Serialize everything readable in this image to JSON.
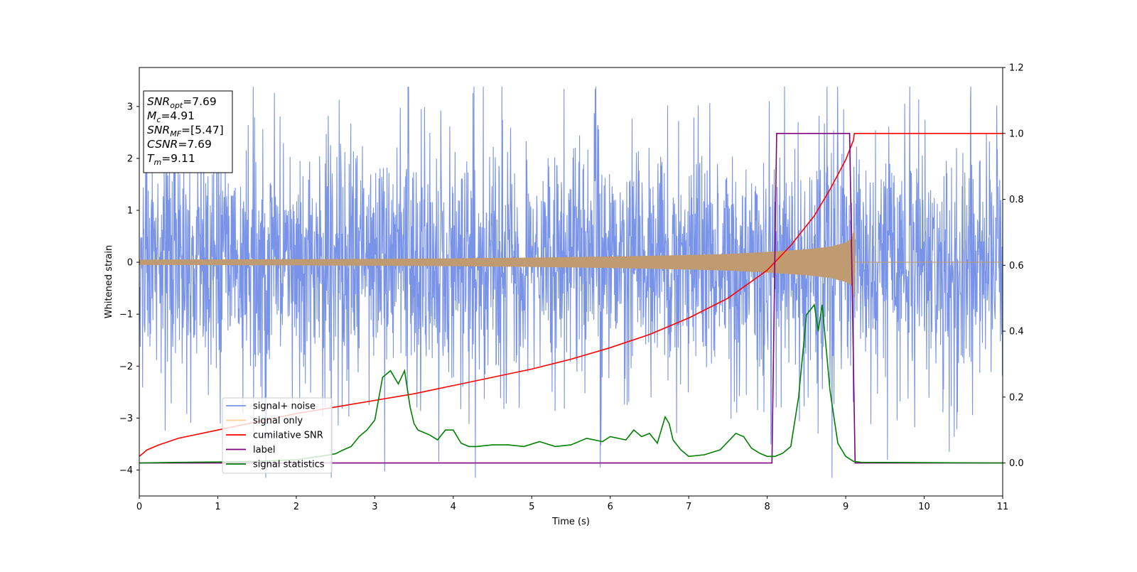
{
  "chart_data": {
    "type": "line",
    "xlabel": "Time (s)",
    "ylabel": "Whitened strain",
    "xlim": [
      0,
      11
    ],
    "ylim_left": [
      -4.5,
      3.75
    ],
    "ylim_right": [
      -0.1,
      1.2
    ],
    "grid": false,
    "legend_position": "lower-left",
    "x_ticks": [
      "0",
      "1",
      "2",
      "3",
      "4",
      "5",
      "6",
      "7",
      "8",
      "9",
      "10",
      "11"
    ],
    "y_ticks_left": [
      "3",
      "2",
      "1",
      "0",
      "−1",
      "−2",
      "−3",
      "−4"
    ],
    "y_ticks_left_values": [
      3,
      2,
      1,
      0,
      -1,
      -2,
      -3,
      -4
    ],
    "y_ticks_right": [
      "1.2",
      "1.0",
      "0.8",
      "0.6",
      "0.4",
      "0.2",
      "0.0"
    ],
    "y_ticks_right_values": [
      1.2,
      1.0,
      0.8,
      0.6,
      0.4,
      0.2,
      0.0
    ],
    "info_box": {
      "lines": [
        {
          "main": "SNR",
          "sub": "opt",
          "value": "=7.69"
        },
        {
          "main": "M",
          "sub": "c",
          "value": "=4.91"
        },
        {
          "main": "SNR",
          "sub": "MF",
          "value": "=[5.47]"
        },
        {
          "main": "CSNR",
          "sub": "",
          "value": "=7.69"
        },
        {
          "main": "T",
          "sub": "m",
          "value": "=9.11"
        }
      ]
    },
    "series": [
      {
        "name": "signal+ noise",
        "axis": "left",
        "color": "#7893e8",
        "kind": "noise_band",
        "noise_envelope": [
          [
            0,
            1.3
          ],
          [
            11,
            1.3
          ]
        ],
        "noise_min": -4.15,
        "noise_max": 3.38
      },
      {
        "name": "signal only",
        "axis": "left",
        "color": "#c09a70",
        "legend_color": "#ffcf8f",
        "kind": "chirp_envelope",
        "envelope": [
          [
            0,
            0.05
          ],
          [
            1,
            0.055
          ],
          [
            2,
            0.06
          ],
          [
            3,
            0.065
          ],
          [
            4,
            0.075
          ],
          [
            5,
            0.09
          ],
          [
            6,
            0.11
          ],
          [
            7,
            0.14
          ],
          [
            7.5,
            0.16
          ],
          [
            8,
            0.2
          ],
          [
            8.5,
            0.25
          ],
          [
            8.8,
            0.3
          ],
          [
            9.0,
            0.38
          ],
          [
            9.08,
            0.46
          ],
          [
            9.11,
            0.7
          ],
          [
            9.12,
            0.0
          ],
          [
            11,
            0.0
          ]
        ]
      },
      {
        "name": "cumilative SNR",
        "axis": "right",
        "color": "#ff0000",
        "x": [
          0,
          0.1,
          0.25,
          0.5,
          1,
          1.5,
          2,
          2.5,
          3,
          3.5,
          4,
          4.5,
          5,
          5.5,
          6,
          6.5,
          7,
          7.5,
          8,
          8.3,
          8.6,
          8.8,
          9.0,
          9.1,
          9.11,
          11
        ],
        "y": [
          0.02,
          0.04,
          0.055,
          0.075,
          0.1,
          0.125,
          0.15,
          0.17,
          0.19,
          0.21,
          0.235,
          0.26,
          0.285,
          0.315,
          0.35,
          0.39,
          0.44,
          0.5,
          0.585,
          0.66,
          0.75,
          0.83,
          0.92,
          0.98,
          1.0,
          1.0
        ]
      },
      {
        "name": "label",
        "axis": "right",
        "color": "#800080",
        "x": [
          0,
          8.06,
          8.12,
          9.05,
          9.12,
          11
        ],
        "y": [
          0,
          0,
          1,
          1,
          0,
          0
        ]
      },
      {
        "name": "signal statistics",
        "axis": "right",
        "color": "#008000",
        "x": [
          0,
          0.5,
          1,
          1.5,
          2,
          2.3,
          2.5,
          2.6,
          2.7,
          2.8,
          2.9,
          3.0,
          3.1,
          3.2,
          3.3,
          3.38,
          3.45,
          3.5,
          3.55,
          3.6,
          3.7,
          3.8,
          3.9,
          4.0,
          4.1,
          4.2,
          4.3,
          4.5,
          4.7,
          4.9,
          5.1,
          5.3,
          5.5,
          5.7,
          5.9,
          6.0,
          6.2,
          6.3,
          6.4,
          6.5,
          6.6,
          6.7,
          6.75,
          6.8,
          6.9,
          7.0,
          7.2,
          7.4,
          7.6,
          7.7,
          7.8,
          7.9,
          8.0,
          8.1,
          8.2,
          8.3,
          8.4,
          8.5,
          8.6,
          8.65,
          8.7,
          8.8,
          8.9,
          9.0,
          9.1,
          9.2,
          11
        ],
        "y": [
          0.0,
          0.002,
          0.003,
          0.005,
          0.01,
          0.02,
          0.028,
          0.04,
          0.05,
          0.08,
          0.1,
          0.13,
          0.26,
          0.28,
          0.24,
          0.28,
          0.17,
          0.12,
          0.1,
          0.095,
          0.085,
          0.07,
          0.1,
          0.1,
          0.06,
          0.05,
          0.05,
          0.055,
          0.055,
          0.05,
          0.065,
          0.05,
          0.055,
          0.075,
          0.065,
          0.08,
          0.07,
          0.1,
          0.08,
          0.09,
          0.06,
          0.14,
          0.12,
          0.07,
          0.04,
          0.02,
          0.025,
          0.04,
          0.09,
          0.08,
          0.045,
          0.03,
          0.02,
          0.02,
          0.03,
          0.05,
          0.2,
          0.45,
          0.48,
          0.4,
          0.48,
          0.22,
          0.06,
          0.02,
          0.005,
          0.002,
          0.0
        ]
      }
    ]
  }
}
